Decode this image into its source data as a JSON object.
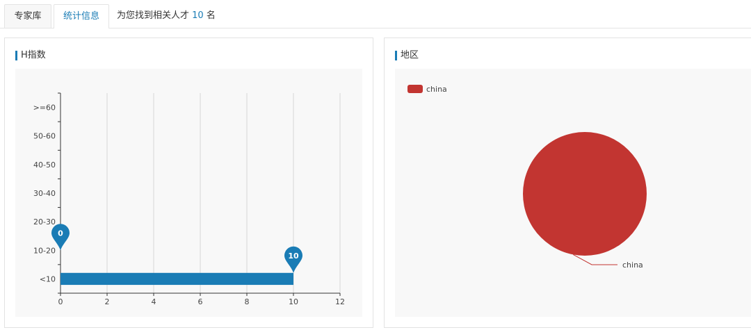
{
  "tabs": [
    {
      "label": "专家库",
      "active": false
    },
    {
      "label": "统计信息",
      "active": true
    }
  ],
  "summary": {
    "prefix": "为您找到相关人才",
    "count": "10",
    "suffix": "名"
  },
  "colors": {
    "accent": "#1a7cb5",
    "bar": "#1a7cb5",
    "pie": "#c23531"
  },
  "h_index_panel": {
    "title": "H指数"
  },
  "region_panel": {
    "title": "地区"
  },
  "chart_data": [
    {
      "type": "bar",
      "orientation": "horizontal",
      "categories": [
        "<10",
        "10-20",
        "20-30",
        "30-40",
        "40-50",
        "50-60",
        ">=60"
      ],
      "values": [
        10,
        0,
        0,
        0,
        0,
        0,
        0
      ],
      "xlim": [
        0,
        12
      ],
      "xticks": [
        0,
        2,
        4,
        6,
        8,
        10,
        12
      ],
      "grid": "vertical",
      "markers": [
        {
          "label": "0",
          "category": "10-20",
          "value": 0
        },
        {
          "label": "10",
          "category": "<10",
          "value": 10
        }
      ]
    },
    {
      "type": "pie",
      "legend": [
        "china"
      ],
      "legend_position": "top-left",
      "slices": [
        {
          "name": "china",
          "value": 10
        }
      ]
    }
  ]
}
